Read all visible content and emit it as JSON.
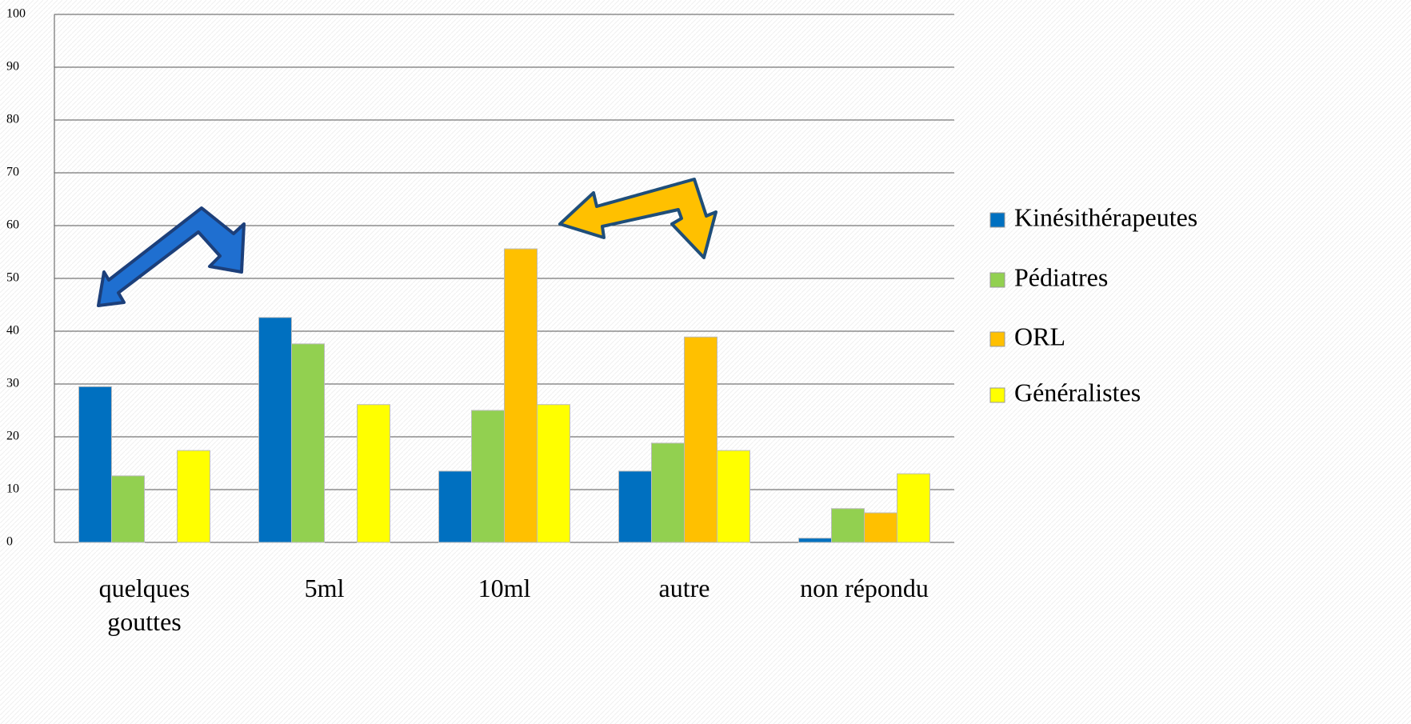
{
  "chart_data": {
    "type": "bar",
    "categories": [
      "quelques gouttes",
      "5ml",
      "10ml",
      "autre",
      "non répondu"
    ],
    "series": [
      {
        "name": "Kinésithérapeutes",
        "color": "#0070c0",
        "values": [
          29.5,
          42.6,
          13.5,
          13.5,
          0.8
        ]
      },
      {
        "name": "Pédiatres",
        "color": "#92d050",
        "values": [
          12.6,
          37.6,
          25,
          18.8,
          6.4
        ]
      },
      {
        "name": "ORL",
        "color": "#ffc000",
        "values": [
          0,
          0,
          55.6,
          38.9,
          5.6
        ]
      },
      {
        "name": "Généralistes",
        "color": "#ffff00",
        "values": [
          17.4,
          26.1,
          26.1,
          17.4,
          13
        ]
      }
    ],
    "ylim": [
      0,
      100
    ],
    "yticks": [
      0,
      10,
      20,
      30,
      40,
      50,
      60,
      70,
      80,
      90,
      100
    ],
    "grid": true,
    "legend": "right"
  }
}
